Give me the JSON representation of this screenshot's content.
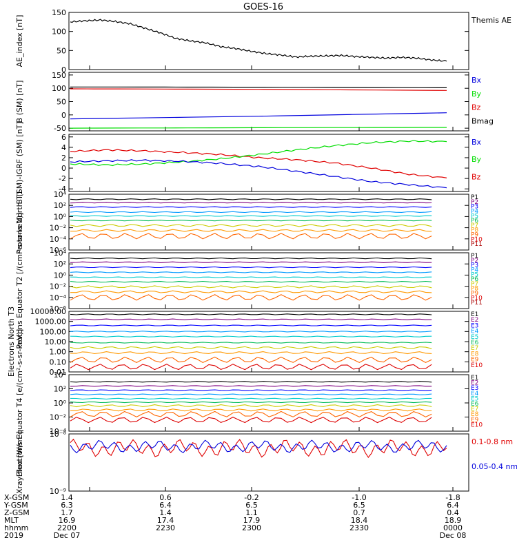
{
  "title": "GOES-16",
  "colors": {
    "black": "#000000",
    "red": "#e00000",
    "green": "#00dd00",
    "blue": "#0000dd",
    "p_channels": [
      "#000000",
      "#7f007f",
      "#0000ff",
      "#0099ff",
      "#00cccc",
      "#00bb55",
      "#cccc00",
      "#ff9900",
      "#ff6600",
      "#dd0000",
      "#aa0000"
    ]
  },
  "chart_data": [
    {
      "id": "ae",
      "type": "line",
      "ylabel": "AE_index [nT]",
      "ylim": [
        0,
        150
      ],
      "ticks": [
        "0",
        "50",
        "100",
        "150"
      ],
      "right_labels": [
        {
          "text": "Themis AE",
          "color": "#000000"
        }
      ],
      "series": [
        {
          "name": "Themis AE",
          "color": "#000000",
          "x": [
            0,
            0.04,
            0.08,
            0.12,
            0.16,
            0.2,
            0.24,
            0.28,
            0.32,
            0.36,
            0.4,
            0.44,
            0.48,
            0.52,
            0.56,
            0.6,
            0.64,
            0.68,
            0.72,
            0.76,
            0.8,
            0.84,
            0.88,
            0.92,
            0.96,
            1.0
          ],
          "values": [
            125,
            128,
            130,
            126,
            120,
            108,
            96,
            82,
            75,
            70,
            60,
            55,
            48,
            42,
            38,
            33,
            35,
            36,
            37,
            34,
            32,
            30,
            32,
            30,
            25,
            22
          ]
        }
      ]
    },
    {
      "id": "b",
      "type": "line",
      "ylabel": "B (SM) [nT]",
      "ylim": [
        -60,
        160
      ],
      "ticks": [
        "-50",
        "0",
        "50",
        "100",
        "150"
      ],
      "right_labels": [
        {
          "text": "Bx",
          "color": "#0000dd"
        },
        {
          "text": "By",
          "color": "#00dd00"
        },
        {
          "text": "Bz",
          "color": "#e00000"
        },
        {
          "text": "Bmag",
          "color": "#000000"
        }
      ],
      "series": [
        {
          "name": "Bmag",
          "color": "#000000",
          "x": [
            0,
            0.5,
            1.0
          ],
          "values": [
            105,
            104,
            102
          ]
        },
        {
          "name": "Bz",
          "color": "#e00000",
          "x": [
            0,
            0.5,
            1.0
          ],
          "values": [
            98,
            96,
            92
          ]
        },
        {
          "name": "Bx",
          "color": "#0000dd",
          "x": [
            0,
            0.5,
            1.0
          ],
          "values": [
            -15,
            -5,
            8
          ]
        },
        {
          "name": "By",
          "color": "#00dd00",
          "x": [
            0,
            0.5,
            1.0
          ],
          "values": [
            -50,
            -48,
            -47
          ]
        }
      ]
    },
    {
      "id": "db",
      "type": "line",
      "ylabel": "B (SM)-IGRF (SM) [nT]",
      "ylim": [
        -4.5,
        6.5
      ],
      "ticks": [
        "-4",
        "-2",
        "0",
        "2",
        "4",
        "6"
      ],
      "right_labels": [
        {
          "text": "Bx",
          "color": "#0000dd"
        },
        {
          "text": "By",
          "color": "#00dd00"
        },
        {
          "text": "Bz",
          "color": "#e00000"
        }
      ],
      "series": [
        {
          "name": "Bz",
          "color": "#e00000",
          "x": [
            0,
            0.1,
            0.2,
            0.3,
            0.4,
            0.5,
            0.6,
            0.7,
            0.8,
            0.9,
            1.0
          ],
          "values": [
            3.2,
            3.5,
            3.3,
            3.0,
            2.6,
            2.0,
            1.6,
            1.0,
            0.0,
            -1.2,
            -1.9
          ]
        },
        {
          "name": "By",
          "color": "#00dd00",
          "x": [
            0,
            0.1,
            0.2,
            0.3,
            0.4,
            0.5,
            0.6,
            0.7,
            0.8,
            0.9,
            1.0
          ],
          "values": [
            0.8,
            0.6,
            0.8,
            1.2,
            1.8,
            2.6,
            3.5,
            4.3,
            4.9,
            5.2,
            5.1
          ]
        },
        {
          "name": "Bx",
          "color": "#0000dd",
          "x": [
            0,
            0.1,
            0.2,
            0.3,
            0.4,
            0.5,
            0.6,
            0.7,
            0.8,
            0.9,
            1.0
          ],
          "values": [
            1.2,
            1.4,
            1.5,
            1.3,
            0.9,
            0.3,
            -0.6,
            -1.6,
            -2.6,
            -3.2,
            -3.8
          ]
        }
      ]
    },
    {
      "id": "protons_t1",
      "type": "line",
      "log": true,
      "ylabel": "Protons North T1",
      "ylim": [
        -6,
        4
      ],
      "ticks": [
        "10⁻⁶",
        "10⁻⁴",
        "10⁻²",
        "10⁰",
        "10²",
        "10⁴"
      ],
      "right_labels": [
        "P1",
        "P2",
        "P3",
        "P4",
        "P5",
        "P6",
        "P7",
        "P8",
        "P9",
        "P10",
        "P11"
      ],
      "series_log10": [
        3.1,
        2.5,
        1.7,
        0.8,
        0.1,
        -0.7,
        -1.6,
        -2.5,
        -3.5,
        null,
        null
      ]
    },
    {
      "id": "protons_t2",
      "type": "line",
      "log": true,
      "ylabel": "Protons Equator T2 [/(cm²-s-sr-keV)]",
      "ylim": [
        -6,
        4
      ],
      "ticks": [
        "10⁻⁶",
        "10⁻⁴",
        "10⁻²",
        "10⁰",
        "10²",
        "10⁴"
      ],
      "right_labels": [
        "P1",
        "P2",
        "P3",
        "P4",
        "P5",
        "P6",
        "P7",
        "P8",
        "P9",
        "P10",
        "P11"
      ],
      "series_log10": [
        3.0,
        2.3,
        1.4,
        0.5,
        -0.4,
        -1.2,
        -2.1,
        -3.0,
        -4.0,
        null,
        null
      ]
    },
    {
      "id": "electrons_t3",
      "type": "line",
      "log": true,
      "ylabel": "Electrons North T3",
      "ylim": [
        -2,
        4
      ],
      "ticks": [
        "0.01",
        "0.10",
        "1.00",
        "10.00",
        "100.00",
        "1000.00",
        "10000.00"
      ],
      "right_labels": [
        "E1",
        "E2",
        "E3",
        "E4",
        "E5",
        "E6",
        "E7",
        "E8",
        "E9",
        "E10"
      ],
      "series_log10": [
        3.7,
        3.2,
        2.6,
        2.0,
        1.5,
        0.9,
        0.4,
        -0.1,
        -0.8,
        -1.5
      ]
    },
    {
      "id": "electrons_t4",
      "type": "line",
      "log": true,
      "ylabel": "Electrons Equator T4 [e/(cm²-s-sr-keV)]",
      "ylim": [
        -4,
        4
      ],
      "ticks": [
        "10⁻⁴",
        "10⁻²",
        "10⁰",
        "10²",
        "10⁴"
      ],
      "right_labels": [
        "E1",
        "E2",
        "E3",
        "E4",
        "E5",
        "E6",
        "E7",
        "E8",
        "E9",
        "E10"
      ],
      "series_log10": [
        3.0,
        2.4,
        1.8,
        1.2,
        0.6,
        0.1,
        -0.4,
        -1.0,
        -1.6,
        -2.4
      ]
    },
    {
      "id": "xray",
      "type": "line",
      "log": true,
      "ylabel": "Xray flux [W/m²]",
      "ylim": [
        -9,
        -8
      ],
      "ticks": [
        "10⁻⁹",
        "10⁻⁸"
      ],
      "right_labels": [
        {
          "text": "0.1-0.8 nm",
          "color": "#e00000"
        },
        {
          "text": "0.05-0.4 nm",
          "color": "#0000dd"
        }
      ]
    }
  ],
  "orbit_table": {
    "row_labels": [
      "X-GSM",
      "Y-GSM",
      "Z-GSM",
      "MLT",
      "hhmm",
      "2019"
    ],
    "columns": [
      {
        "values": [
          "1.4",
          "6.3",
          "1.7",
          "16.9",
          "2200",
          "Dec 07"
        ]
      },
      {
        "values": [
          "0.6",
          "6.4",
          "1.4",
          "17.4",
          "2230",
          ""
        ]
      },
      {
        "values": [
          "-0.2",
          "6.5",
          "1.1",
          "17.9",
          "2300",
          ""
        ]
      },
      {
        "values": [
          "-1.0",
          "6.5",
          "0.7",
          "18.4",
          "2330",
          ""
        ]
      },
      {
        "values": [
          "-1.8",
          "6.4",
          "0.4",
          "18.9",
          "0000",
          "Dec 08"
        ]
      }
    ]
  }
}
